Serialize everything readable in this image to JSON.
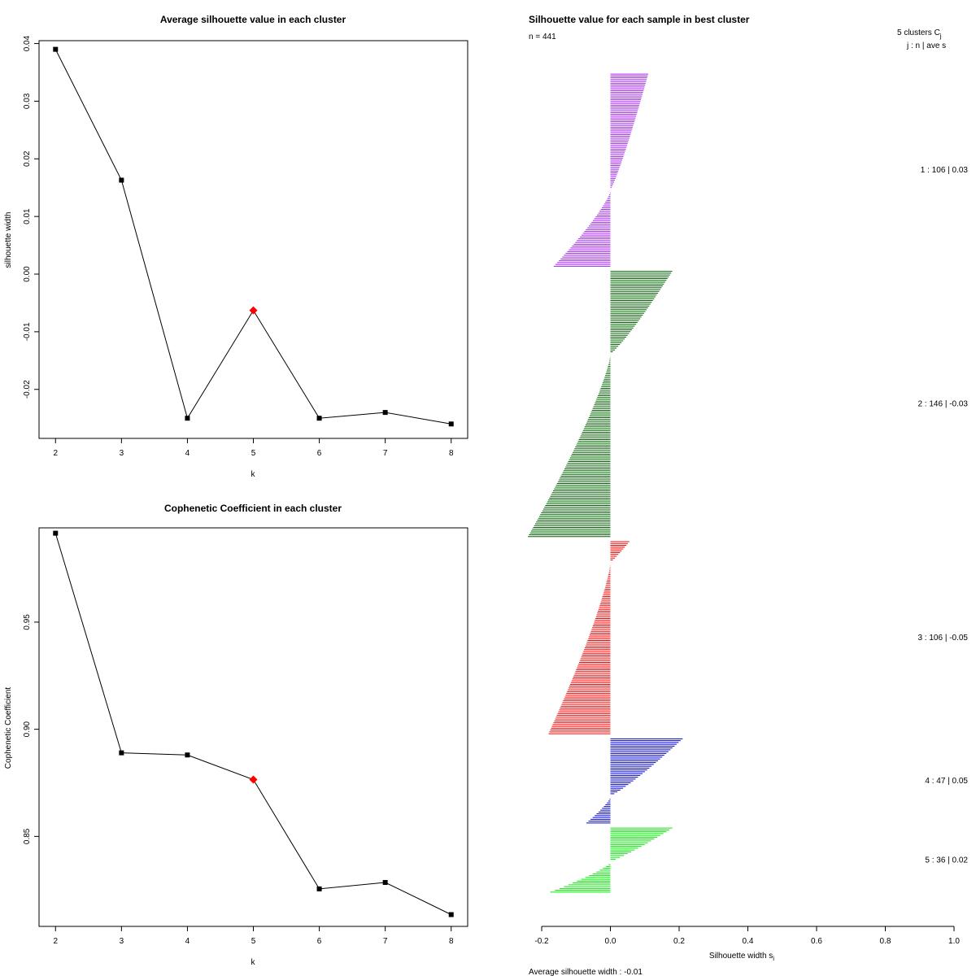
{
  "chart_data": [
    {
      "type": "line",
      "title": "Average silhouette value in each cluster",
      "xlabel": "k",
      "ylabel": "silhouette width",
      "x": [
        2,
        3,
        4,
        5,
        6,
        7,
        8
      ],
      "values": [
        0.039,
        0.0163,
        -0.025,
        -0.0063,
        -0.025,
        -0.024,
        -0.026
      ],
      "highlight_k": 5,
      "highlight_color": "#ff0000",
      "xlim": [
        1.75,
        8.25
      ],
      "ylim": [
        -0.0285,
        0.0405
      ],
      "xticks": [
        "2",
        "3",
        "4",
        "5",
        "6",
        "7",
        "8"
      ],
      "yticks": [
        "-0.02",
        "-0.01",
        "0.00",
        "0.01",
        "0.02",
        "0.03",
        "0.04"
      ],
      "ytick_values": [
        -0.02,
        -0.01,
        0.0,
        0.01,
        0.02,
        0.03,
        0.04
      ]
    },
    {
      "type": "line",
      "title": "Cophenetic Coefficient in each cluster",
      "xlabel": "k",
      "ylabel": "Cophenetic Coefficient",
      "x": [
        2,
        3,
        4,
        5,
        6,
        7,
        8
      ],
      "values": [
        0.9915,
        0.889,
        0.888,
        0.8765,
        0.8255,
        0.8285,
        0.8135
      ],
      "highlight_k": 5,
      "highlight_color": "#ff0000",
      "xlim": [
        1.75,
        8.25
      ],
      "ylim": [
        0.808,
        0.994
      ],
      "xticks": [
        "2",
        "3",
        "4",
        "5",
        "6",
        "7",
        "8"
      ],
      "yticks": [
        "0.85",
        "0.90",
        "0.95"
      ],
      "ytick_values": [
        0.85,
        0.9,
        0.95
      ]
    },
    {
      "type": "bar",
      "orientation": "horizontal",
      "title": "Silhouette value for each sample in best cluster",
      "n_label": "n = 441",
      "xlabel": "Silhouette width s",
      "xlabel_sub": "i",
      "xlim": [
        -0.2,
        1.0
      ],
      "xticks": [
        "-0.2",
        "0.0",
        "0.2",
        "0.4",
        "0.6",
        "0.8",
        "1.0"
      ],
      "xtick_values": [
        -0.2,
        0.0,
        0.2,
        0.4,
        0.6,
        0.8,
        1.0
      ],
      "legend_header": "5 clusters C",
      "legend_header_sub": "j",
      "legend_subheader": "j : n | ave s",
      "footer": "Average silhouette width : -0.01",
      "clusters": [
        {
          "label": "1 : 106 | 0.03",
          "n": 106,
          "avg": 0.03,
          "color": "#a020f0",
          "max": 0.11,
          "min": -0.165,
          "npos": 64
        },
        {
          "label": "2 : 146 | -0.03",
          "n": 146,
          "avg": -0.03,
          "color": "#006400",
          "max": 0.18,
          "min": -0.24,
          "npos": 46
        },
        {
          "label": "3 : 106 | -0.05",
          "n": 106,
          "avg": -0.05,
          "color": "#ff0000",
          "max": 0.055,
          "min": -0.18,
          "npos": 12
        },
        {
          "label": "4 : 47 | 0.05",
          "n": 47,
          "avg": 0.05,
          "color": "#0000cd",
          "max": 0.21,
          "min": -0.07,
          "npos": 32
        },
        {
          "label": "5 : 36 | 0.02",
          "n": 36,
          "avg": 0.02,
          "color": "#00ee00",
          "max": 0.18,
          "min": -0.175,
          "npos": 19
        }
      ]
    }
  ]
}
